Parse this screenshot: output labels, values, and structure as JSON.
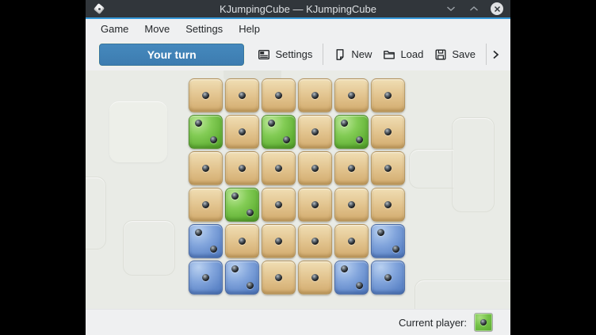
{
  "titlebar": {
    "title": "KJumpingCube — KJumpingCube",
    "app_icon": "dice-icon",
    "minimize_icon": "chevron-down-icon",
    "maximize_icon": "chevron-up-icon",
    "close_icon": "close-icon"
  },
  "menubar": {
    "items": [
      "Game",
      "Move",
      "Settings",
      "Help"
    ]
  },
  "toolbar": {
    "turn_indicator": "Your turn",
    "buttons": [
      {
        "label": "Settings",
        "icon": "settings-icon"
      },
      {
        "label": "New",
        "icon": "new-document-icon"
      },
      {
        "label": "Load",
        "icon": "open-folder-icon"
      },
      {
        "label": "Save",
        "icon": "save-icon"
      }
    ],
    "overflow_icon": "chevron-right-icon"
  },
  "board": {
    "rows": 6,
    "cols": 6,
    "cells": [
      [
        {
          "owner": "neutral",
          "points": 1
        },
        {
          "owner": "neutral",
          "points": 1
        },
        {
          "owner": "neutral",
          "points": 1
        },
        {
          "owner": "neutral",
          "points": 1
        },
        {
          "owner": "neutral",
          "points": 1
        },
        {
          "owner": "neutral",
          "points": 1
        }
      ],
      [
        {
          "owner": "green",
          "points": 2
        },
        {
          "owner": "neutral",
          "points": 1
        },
        {
          "owner": "green",
          "points": 2
        },
        {
          "owner": "neutral",
          "points": 1
        },
        {
          "owner": "green",
          "points": 2
        },
        {
          "owner": "neutral",
          "points": 1
        }
      ],
      [
        {
          "owner": "neutral",
          "points": 1
        },
        {
          "owner": "neutral",
          "points": 1
        },
        {
          "owner": "neutral",
          "points": 1
        },
        {
          "owner": "neutral",
          "points": 1
        },
        {
          "owner": "neutral",
          "points": 1
        },
        {
          "owner": "neutral",
          "points": 1
        }
      ],
      [
        {
          "owner": "neutral",
          "points": 1
        },
        {
          "owner": "green",
          "points": 2
        },
        {
          "owner": "neutral",
          "points": 1
        },
        {
          "owner": "neutral",
          "points": 1
        },
        {
          "owner": "neutral",
          "points": 1
        },
        {
          "owner": "neutral",
          "points": 1
        }
      ],
      [
        {
          "owner": "blue",
          "points": 2
        },
        {
          "owner": "neutral",
          "points": 1
        },
        {
          "owner": "neutral",
          "points": 1
        },
        {
          "owner": "neutral",
          "points": 1
        },
        {
          "owner": "neutral",
          "points": 1
        },
        {
          "owner": "blue",
          "points": 2
        }
      ],
      [
        {
          "owner": "blue",
          "points": 1
        },
        {
          "owner": "blue",
          "points": 2
        },
        {
          "owner": "neutral",
          "points": 1
        },
        {
          "owner": "neutral",
          "points": 1
        },
        {
          "owner": "blue",
          "points": 2
        },
        {
          "owner": "blue",
          "points": 1
        }
      ]
    ]
  },
  "statusbar": {
    "label": "Current player:",
    "current_player": "green",
    "indicator_points": 1
  },
  "colors": {
    "accent": "#3498d8",
    "titlebar_bg": "#31363b",
    "chrome_bg": "#eff0f1",
    "board_bg": "#e9ebe6",
    "neutral_cube": "#ddba85",
    "green_cube": "#6cb63e",
    "blue_cube": "#6b92d0",
    "turn_button": "#3f82b8"
  }
}
